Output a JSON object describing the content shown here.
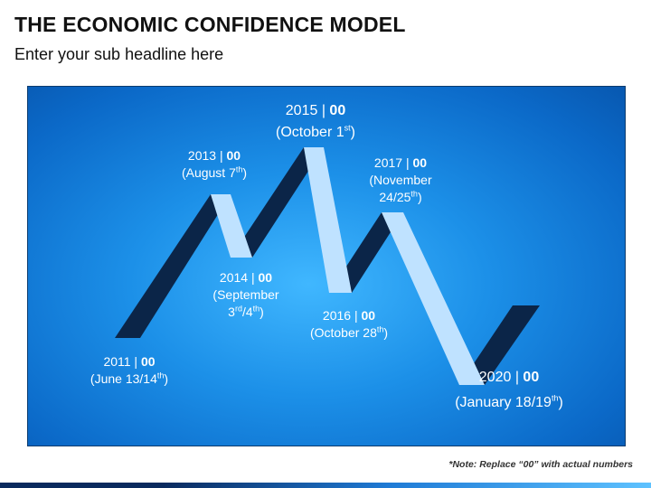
{
  "title": "THE ECONOMIC CONFIDENCE MODEL",
  "subtitle": "Enter your sub headline here",
  "note": "*Note: Replace “00” with actual numbers",
  "colors": {
    "panel": "#1c90e8",
    "dark_segment": "#0b2548",
    "light_segment": "#bfe2ff",
    "text": "#ffffff"
  },
  "milestones": [
    {
      "year": "2011",
      "value": "00",
      "date_pre": "(June 13/14",
      "date_sup": "th",
      "date_post": ")"
    },
    {
      "year": "2013",
      "value": "00",
      "date_pre": "(August 7",
      "date_sup": "th",
      "date_post": ")"
    },
    {
      "year": "2014",
      "value": "00",
      "date_line1": "(September",
      "date_pre": "3",
      "date_sup": "rd",
      "date_mid": "/4",
      "date_sup2": "th",
      "date_post": ")"
    },
    {
      "year": "2015",
      "value": "00",
      "date_pre": "(October 1",
      "date_sup": "st",
      "date_post": ")"
    },
    {
      "year": "2016",
      "value": "00",
      "date_pre": "(October 28",
      "date_sup": "th",
      "date_post": ")"
    },
    {
      "year": "2017",
      "value": "00",
      "date_line1": "(November",
      "date_pre": "24/25",
      "date_sup": "th",
      "date_post": ")"
    },
    {
      "year": "2020",
      "value": "00",
      "date_pre": "(January 18/19",
      "date_sup": "th",
      "date_post": ")"
    }
  ]
}
